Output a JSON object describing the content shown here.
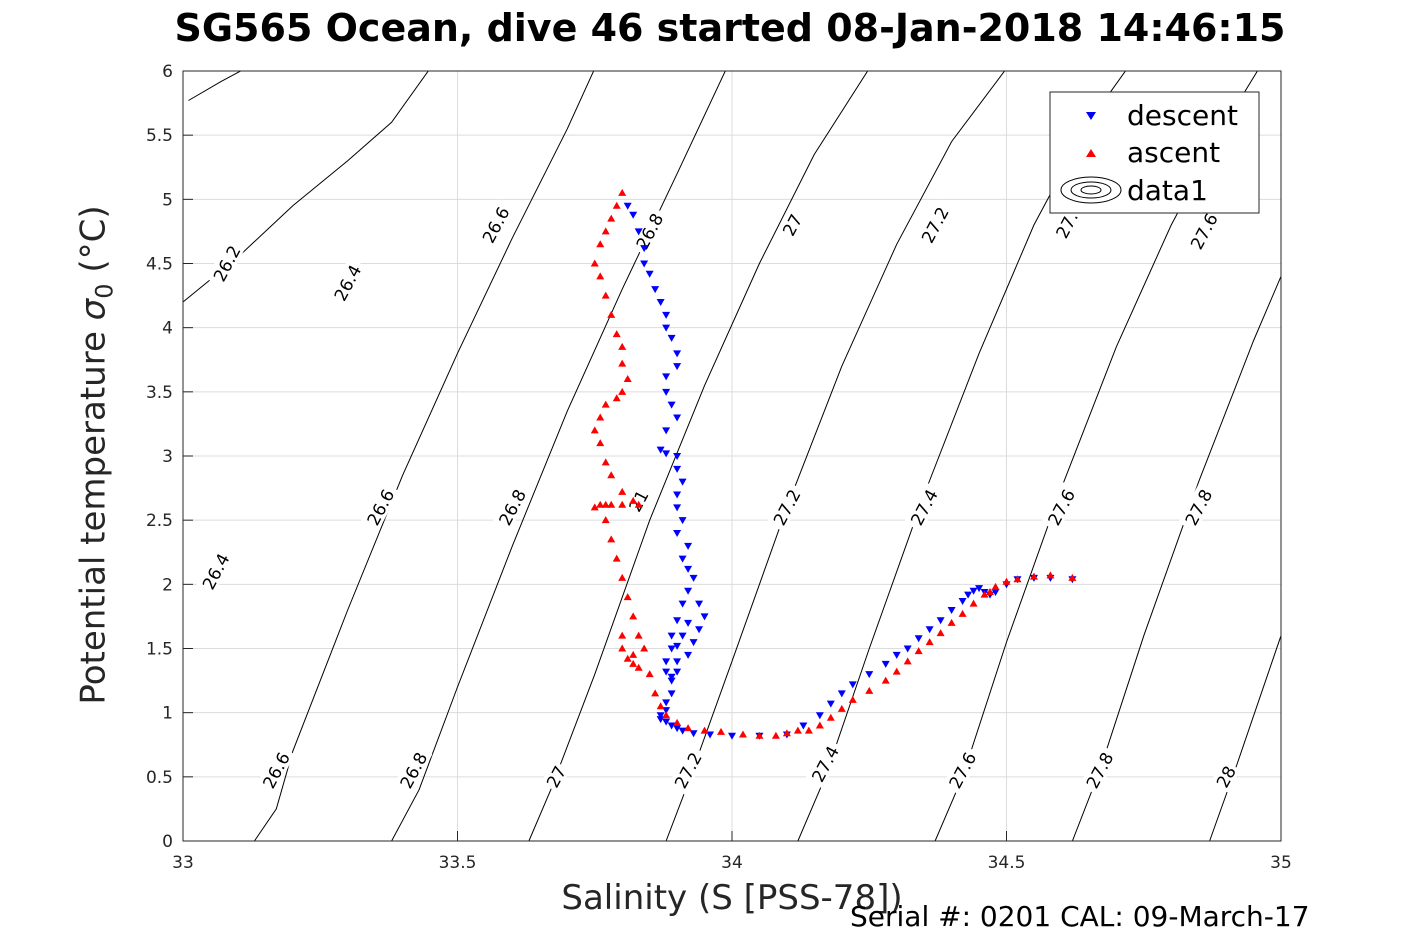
{
  "title": "SG565 Ocean, dive 46 started 08-Jan-2018 14:46:15",
  "footer": "Serial #: 0201  CAL: 09-March-17",
  "chart_data": {
    "type": "scatter",
    "title": "SG565 Ocean, dive 46 started 08-Jan-2018 14:46:15",
    "xlabel": "Salinity (S [PSS-78])",
    "ylabel_main": "Potential temperature ",
    "ylabel_sigma": "σ",
    "ylabel_sub": "0",
    "ylabel_unit": " (°C)",
    "xlim": [
      33,
      35
    ],
    "ylim": [
      0,
      6
    ],
    "xticks": [
      "33",
      "33.5",
      "34",
      "34.5",
      "35"
    ],
    "yticks": [
      "0",
      "0.5",
      "1",
      "1.5",
      "2",
      "2.5",
      "3",
      "3.5",
      "4",
      "4.5",
      "5",
      "5.5",
      "6"
    ],
    "grid": true,
    "legend_position": "top-right",
    "legend": [
      "descent",
      "ascent",
      "data1"
    ],
    "colors": {
      "descent": "#0000ff",
      "ascent": "#ff0000",
      "contour": "#000000",
      "grid": "#dcdcdc"
    },
    "contour_levels": [
      {
        "label": "26.2",
        "points": [
          [
            33.01,
            5.77
          ],
          [
            33.07,
            5.92
          ],
          [
            33.14,
            6.08
          ]
        ]
      },
      {
        "label": "26.4",
        "points": [
          [
            33.0,
            4.2
          ],
          [
            33.1,
            4.55
          ],
          [
            33.2,
            4.95
          ],
          [
            33.3,
            5.3
          ],
          [
            33.38,
            5.6
          ],
          [
            33.45,
            6.02
          ]
        ]
      },
      {
        "label": "26.6",
        "points": [
          [
            33.13,
            0.0
          ],
          [
            33.17,
            0.25
          ],
          [
            33.2,
            0.7
          ],
          [
            33.3,
            1.8
          ],
          [
            33.4,
            2.85
          ],
          [
            33.5,
            3.8
          ],
          [
            33.6,
            4.7
          ],
          [
            33.7,
            5.55
          ],
          [
            33.75,
            6.02
          ]
        ]
      },
      {
        "label": "26.8",
        "points": [
          [
            33.38,
            0.0
          ],
          [
            33.43,
            0.4
          ],
          [
            33.5,
            1.2
          ],
          [
            33.6,
            2.3
          ],
          [
            33.7,
            3.35
          ],
          [
            33.8,
            4.3
          ],
          [
            33.9,
            5.2
          ],
          [
            33.99,
            6.02
          ]
        ]
      },
      {
        "label": "27",
        "points": [
          [
            33.63,
            0.0
          ],
          [
            33.67,
            0.4
          ],
          [
            33.75,
            1.3
          ],
          [
            33.85,
            2.5
          ],
          [
            33.95,
            3.55
          ],
          [
            34.05,
            4.5
          ],
          [
            34.15,
            5.35
          ],
          [
            34.25,
            6.02
          ]
        ]
      },
      {
        "label": "27.2",
        "points": [
          [
            33.88,
            0.0
          ],
          [
            33.92,
            0.45
          ],
          [
            34.0,
            1.4
          ],
          [
            34.1,
            2.6
          ],
          [
            34.2,
            3.7
          ],
          [
            34.3,
            4.65
          ],
          [
            34.4,
            5.45
          ],
          [
            34.5,
            6.02
          ]
        ]
      },
      {
        "label": "27.4",
        "points": [
          [
            34.12,
            0.0
          ],
          [
            34.17,
            0.5
          ],
          [
            34.25,
            1.5
          ],
          [
            34.35,
            2.7
          ],
          [
            34.45,
            3.8
          ],
          [
            34.55,
            4.8
          ],
          [
            34.65,
            5.6
          ],
          [
            34.72,
            6.02
          ]
        ]
      },
      {
        "label": "27.6",
        "points": [
          [
            34.37,
            0.0
          ],
          [
            34.42,
            0.5
          ],
          [
            34.5,
            1.55
          ],
          [
            34.6,
            2.75
          ],
          [
            34.7,
            3.85
          ],
          [
            34.8,
            4.8
          ],
          [
            34.9,
            5.6
          ],
          [
            34.96,
            6.02
          ]
        ]
      },
      {
        "label": "27.8",
        "points": [
          [
            34.62,
            0.0
          ],
          [
            34.67,
            0.55
          ],
          [
            34.75,
            1.6
          ],
          [
            34.85,
            2.8
          ],
          [
            34.95,
            3.9
          ],
          [
            35.01,
            4.5
          ]
        ]
      },
      {
        "label": "28",
        "points": [
          [
            34.87,
            0.0
          ],
          [
            34.92,
            0.6
          ],
          [
            35.0,
            1.6
          ]
        ]
      }
    ],
    "contour_labels": [
      {
        "text": "26.2",
        "x": 33.08,
        "y": 4.5
      },
      {
        "text": "26.4",
        "x": 33.3,
        "y": 4.35
      },
      {
        "text": "26.6",
        "x": 33.57,
        "y": 4.8
      },
      {
        "text": "26.8",
        "x": 33.85,
        "y": 4.75
      },
      {
        "text": "27",
        "x": 34.11,
        "y": 4.8
      },
      {
        "text": "27.2",
        "x": 34.37,
        "y": 4.8
      },
      {
        "text": "27.",
        "x": 34.61,
        "y": 4.8
      },
      {
        "text": "27.6",
        "x": 34.86,
        "y": 4.75
      },
      {
        "text": "26.4",
        "x": 33.06,
        "y": 2.1
      },
      {
        "text": "26.6",
        "x": 33.36,
        "y": 2.6
      },
      {
        "text": "26.8",
        "x": 33.6,
        "y": 2.6
      },
      {
        "text": "21",
        "x": 33.83,
        "y": 2.65
      },
      {
        "text": "27.2",
        "x": 34.1,
        "y": 2.6
      },
      {
        "text": "27.4",
        "x": 34.35,
        "y": 2.6
      },
      {
        "text": "27.6",
        "x": 34.6,
        "y": 2.6
      },
      {
        "text": "27.8",
        "x": 34.85,
        "y": 2.6
      },
      {
        "text": "26.6",
        "x": 33.17,
        "y": 0.55
      },
      {
        "text": "26.8",
        "x": 33.42,
        "y": 0.55
      },
      {
        "text": "27",
        "x": 33.68,
        "y": 0.5
      },
      {
        "text": "27.2",
        "x": 33.92,
        "y": 0.55
      },
      {
        "text": "27.4",
        "x": 34.17,
        "y": 0.6
      },
      {
        "text": "27.6",
        "x": 34.42,
        "y": 0.55
      },
      {
        "text": "27.8",
        "x": 34.67,
        "y": 0.55
      },
      {
        "text": "28",
        "x": 34.9,
        "y": 0.5
      }
    ],
    "series": [
      {
        "name": "descent",
        "marker": "triangle-down",
        "x": [
          33.81,
          33.82,
          33.83,
          33.84,
          33.84,
          33.85,
          33.86,
          33.87,
          33.88,
          33.88,
          33.89,
          33.9,
          33.9,
          33.88,
          33.88,
          33.89,
          33.9,
          33.88,
          33.87,
          33.88,
          33.9,
          33.9,
          33.91,
          33.9,
          33.9,
          33.91,
          33.9,
          33.92,
          33.91,
          33.92,
          33.93,
          33.92,
          33.91,
          33.9,
          33.89,
          33.89,
          33.88,
          33.88,
          33.89,
          33.9,
          33.92,
          33.93,
          33.94,
          33.95,
          33.94,
          33.92,
          33.91,
          33.9,
          33.9,
          33.89,
          33.89,
          33.88,
          33.88,
          33.87,
          33.87,
          33.88,
          33.89,
          33.9,
          33.91,
          33.93,
          33.96,
          34.0,
          34.05,
          34.1,
          34.13,
          34.16,
          34.18,
          34.2,
          34.22,
          34.25,
          34.28,
          34.3,
          34.32,
          34.34,
          34.36,
          34.38,
          34.4,
          34.42,
          34.43,
          34.44,
          34.45,
          34.46,
          34.47,
          34.48,
          34.5,
          34.52,
          34.55,
          34.58,
          34.62
        ],
        "y": [
          4.95,
          4.88,
          4.75,
          4.62,
          4.5,
          4.42,
          4.3,
          4.2,
          4.1,
          4.0,
          3.92,
          3.8,
          3.7,
          3.62,
          3.5,
          3.4,
          3.3,
          3.2,
          3.05,
          3.02,
          3.0,
          2.9,
          2.8,
          2.7,
          2.6,
          2.5,
          2.4,
          2.3,
          2.2,
          2.12,
          2.05,
          1.95,
          1.85,
          1.72,
          1.6,
          1.5,
          1.4,
          1.32,
          1.28,
          1.32,
          1.45,
          1.55,
          1.65,
          1.75,
          1.85,
          1.7,
          1.6,
          1.52,
          1.4,
          1.25,
          1.15,
          1.08,
          1.02,
          0.98,
          0.95,
          0.93,
          0.9,
          0.88,
          0.86,
          0.84,
          0.83,
          0.82,
          0.82,
          0.83,
          0.9,
          0.98,
          1.07,
          1.15,
          1.22,
          1.3,
          1.38,
          1.45,
          1.5,
          1.58,
          1.65,
          1.72,
          1.8,
          1.87,
          1.92,
          1.95,
          1.97,
          1.94,
          1.92,
          1.94,
          2.0,
          2.04,
          2.05,
          2.05,
          2.04
        ]
      },
      {
        "name": "ascent",
        "marker": "triangle-up",
        "x": [
          33.8,
          33.79,
          33.78,
          33.77,
          33.76,
          33.75,
          33.76,
          33.77,
          33.78,
          33.79,
          33.8,
          33.8,
          33.81,
          33.8,
          33.79,
          33.77,
          33.76,
          33.75,
          33.76,
          33.77,
          33.78,
          33.8,
          33.82,
          33.83,
          33.8,
          33.78,
          33.77,
          33.76,
          33.75,
          33.77,
          33.78,
          33.79,
          33.8,
          33.81,
          33.82,
          33.8,
          33.8,
          33.81,
          33.82,
          33.83,
          33.82,
          33.83,
          33.84,
          33.85,
          33.86,
          33.87,
          33.88,
          33.9,
          33.92,
          33.95,
          33.98,
          34.02,
          34.05,
          34.08,
          34.1,
          34.12,
          34.14,
          34.16,
          34.18,
          34.2,
          34.22,
          34.25,
          34.28,
          34.3,
          34.32,
          34.34,
          34.36,
          34.38,
          34.4,
          34.42,
          34.44,
          34.46,
          34.47,
          34.48,
          34.5,
          34.52,
          34.55,
          34.58,
          34.62
        ],
        "y": [
          5.05,
          4.95,
          4.85,
          4.75,
          4.65,
          4.5,
          4.4,
          4.25,
          4.1,
          3.95,
          3.85,
          3.72,
          3.6,
          3.5,
          3.45,
          3.4,
          3.3,
          3.2,
          3.1,
          2.95,
          2.85,
          2.72,
          2.65,
          2.62,
          2.62,
          2.62,
          2.62,
          2.62,
          2.6,
          2.5,
          2.35,
          2.2,
          2.05,
          1.9,
          1.75,
          1.6,
          1.5,
          1.42,
          1.38,
          1.35,
          1.45,
          1.6,
          1.5,
          1.3,
          1.15,
          1.05,
          0.98,
          0.92,
          0.88,
          0.86,
          0.85,
          0.83,
          0.82,
          0.82,
          0.84,
          0.86,
          0.86,
          0.9,
          0.96,
          1.03,
          1.1,
          1.17,
          1.25,
          1.32,
          1.4,
          1.48,
          1.55,
          1.62,
          1.7,
          1.77,
          1.85,
          1.92,
          1.94,
          1.98,
          2.02,
          2.04,
          2.06,
          2.07,
          2.05
        ]
      }
    ]
  }
}
